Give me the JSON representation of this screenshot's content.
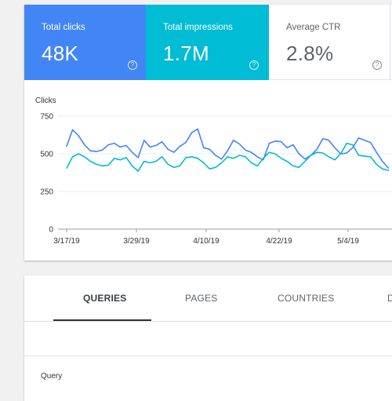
{
  "metrics": {
    "clicks": {
      "label": "Total clicks",
      "value": "48K",
      "color": "#4285f4",
      "help_icon": "help-circle-icon"
    },
    "impressions": {
      "label": "Total impressions",
      "value": "1.7M",
      "color": "#00bcd4",
      "help_icon": "help-circle-icon"
    },
    "ctr": {
      "label": "Average CTR",
      "value": "2.8%",
      "help_icon": "help-circle-icon"
    }
  },
  "chart": {
    "ylabel": "Clicks",
    "yticks": [
      "750",
      "500",
      "250",
      "0"
    ],
    "xticks": [
      "3/17/19",
      "3/29/19",
      "4/10/19",
      "4/22/19",
      "5/4/19"
    ]
  },
  "chart_data": {
    "type": "line",
    "ylabel": "Clicks",
    "ylim": [
      0,
      750
    ],
    "x_tick_labels": [
      "3/17/19",
      "3/29/19",
      "4/10/19",
      "4/22/19",
      "5/4/19"
    ],
    "grid": true,
    "series": [
      {
        "color": "#4285f4",
        "values": [
          550,
          660,
          620,
          560,
          520,
          515,
          525,
          560,
          570,
          545,
          555,
          510,
          475,
          590,
          545,
          555,
          580,
          530,
          510,
          550,
          575,
          640,
          665,
          540,
          530,
          490,
          465,
          520,
          590,
          565,
          525,
          510,
          480,
          460,
          570,
          585,
          580,
          540,
          560,
          500,
          465,
          490,
          530,
          600,
          590,
          540,
          500,
          505,
          540,
          605,
          590,
          575,
          510,
          450,
          405
        ]
      },
      {
        "color": "#00bcd4",
        "values": [
          405,
          480,
          500,
          480,
          450,
          430,
          420,
          425,
          470,
          460,
          475,
          420,
          385,
          450,
          440,
          450,
          480,
          430,
          410,
          420,
          475,
          480,
          470,
          440,
          400,
          410,
          440,
          480,
          470,
          490,
          480,
          440,
          420,
          470,
          510,
          500,
          470,
          450,
          420,
          410,
          450,
          490,
          510,
          505,
          480,
          460,
          500,
          570,
          560,
          490,
          485,
          480,
          430,
          400,
          390
        ]
      }
    ]
  },
  "tabs": [
    {
      "label": "QUERIES",
      "active": true
    },
    {
      "label": "PAGES",
      "active": false
    },
    {
      "label": "COUNTRIES",
      "active": false
    },
    {
      "label": "D",
      "active": false
    }
  ],
  "table": {
    "column_query": "Query"
  }
}
